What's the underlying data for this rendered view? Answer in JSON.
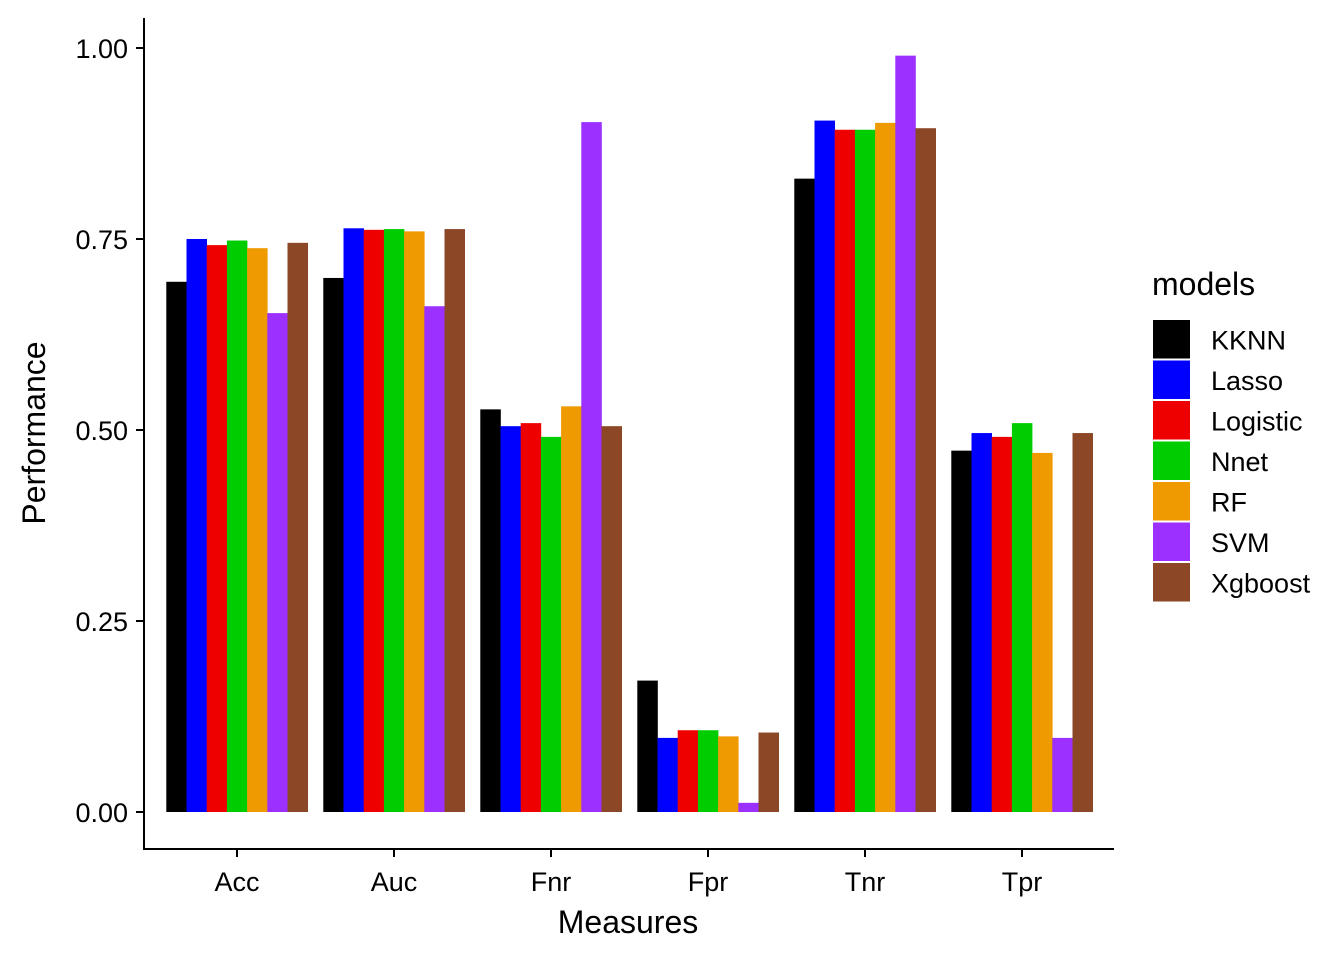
{
  "chart_data": {
    "type": "bar",
    "xlabel": "Measures",
    "ylabel": "Performance",
    "ylim": [
      -0.045,
      1.04
    ],
    "yticks": [
      "0.00",
      "0.25",
      "0.50",
      "0.75",
      "1.00"
    ],
    "categories": [
      "Acc",
      "Auc",
      "Fnr",
      "Fpr",
      "Tnr",
      "Tpr"
    ],
    "legend": {
      "title": "models",
      "placement": "right"
    },
    "grid": false,
    "series": [
      {
        "name": "KKNN",
        "color": "#000000",
        "values": [
          0.694,
          0.699,
          0.527,
          0.172,
          0.829,
          0.473
        ]
      },
      {
        "name": "Lasso",
        "color": "#0000FF",
        "values": [
          0.75,
          0.764,
          0.505,
          0.097,
          0.905,
          0.496
        ]
      },
      {
        "name": "Logistic",
        "color": "#EE0000",
        "values": [
          0.742,
          0.762,
          0.509,
          0.107,
          0.893,
          0.491
        ]
      },
      {
        "name": "Nnet",
        "color": "#00CD00",
        "values": [
          0.748,
          0.763,
          0.491,
          0.107,
          0.893,
          0.509
        ]
      },
      {
        "name": "RF",
        "color": "#EE9A00",
        "values": [
          0.738,
          0.76,
          0.531,
          0.099,
          0.902,
          0.47
        ]
      },
      {
        "name": "SVM",
        "color": "#9B30FF",
        "values": [
          0.653,
          0.662,
          0.903,
          0.012,
          0.99,
          0.097
        ]
      },
      {
        "name": "Xgboost",
        "color": "#8B4726",
        "values": [
          0.745,
          0.763,
          0.505,
          0.104,
          0.895,
          0.496
        ]
      }
    ]
  }
}
